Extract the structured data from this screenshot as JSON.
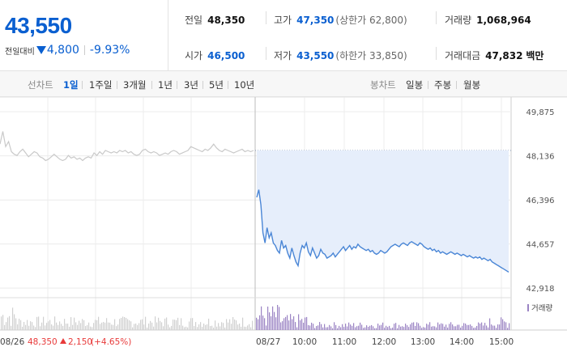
{
  "quote": {
    "price": "43,550",
    "change_label": "전일대비",
    "change_amount": "4,800",
    "change_rate": "-9.93%",
    "color_down": "#0a5fd0",
    "color_up": "#e83a3a"
  },
  "stats": {
    "prev_close": {
      "label": "전일",
      "value": "48,350"
    },
    "open": {
      "label": "시가",
      "value": "46,500"
    },
    "high": {
      "label": "고가",
      "value": "47,350",
      "sub": "(상한가 62,800)"
    },
    "low": {
      "label": "저가",
      "value": "43,550",
      "sub": "(하한가 33,850)"
    },
    "volume": {
      "label": "거래량",
      "value": "1,068,964"
    },
    "turnover": {
      "label": "거래대금",
      "value": "47,832",
      "unit": "백만"
    }
  },
  "tabs": {
    "line_label": "선차트",
    "line_periods": [
      "1일",
      "1주일",
      "3개월",
      "1년",
      "3년",
      "5년",
      "10년"
    ],
    "active_index": 0,
    "candle_label": "봉차트",
    "candle_periods": [
      "일봉",
      "주봉",
      "월봉"
    ]
  },
  "chart_data": {
    "type": "line",
    "y_ticks": [
      "49,875",
      "48,136",
      "46,396",
      "44,657",
      "42,918"
    ],
    "y_tick_values": [
      49875,
      48136,
      46396,
      44657,
      42918
    ],
    "ylim": [
      42700,
      50200
    ],
    "reference_line": 48350,
    "x_ticks": [
      "08/26",
      "08/27",
      "10:00",
      "11:00",
      "12:00",
      "13:00",
      "14:00",
      "15:00"
    ],
    "prev_day_note": {
      "price": "48,350",
      "change": "2,150",
      "rate": "(+4.65%)"
    },
    "volume_label": "거래량",
    "series": [
      {
        "name": "08/26",
        "style": "gray",
        "values": [
          48600,
          49100,
          48500,
          48700,
          48300,
          48200,
          48150,
          48300,
          48400,
          48250,
          48100,
          48200,
          48300,
          48250,
          48100,
          48050,
          47950,
          48000,
          48100,
          48200,
          48100,
          48000,
          47950,
          48000,
          48150,
          48050,
          48100,
          48000,
          48050,
          47950,
          48050,
          48100,
          48050,
          48250,
          48150,
          48300,
          48200,
          48350,
          48300,
          48250,
          48300,
          48250,
          48350,
          48300,
          48350,
          48250,
          48300,
          48200,
          48150,
          48200,
          48350,
          48400,
          48300,
          48250,
          48300,
          48250,
          48150,
          48200,
          48250,
          48200,
          48300,
          48350,
          48300,
          48200,
          48250,
          48300,
          48350,
          48500,
          48450,
          48400,
          48350,
          48300,
          48400,
          48350,
          48450,
          48600,
          48450,
          48350,
          48300,
          48400,
          48350,
          48300,
          48250,
          48300,
          48350,
          48400,
          48300,
          48350,
          48300,
          48350
        ]
      },
      {
        "name": "08/27",
        "style": "blue",
        "values": [
          46500,
          46800,
          46200,
          45100,
          44700,
          45300,
          44900,
          45100,
          44700,
          44600,
          44400,
          44300,
          44800,
          44500,
          44600,
          44300,
          44100,
          44500,
          44200,
          43950,
          43800,
          44300,
          44600,
          44500,
          44700,
          44350,
          44200,
          44500,
          44300,
          44100,
          44200,
          44450,
          44300,
          44250,
          44100,
          44150,
          44200,
          44300,
          44150,
          44250,
          44350,
          44450,
          44550,
          44400,
          44500,
          44600,
          44450,
          44550,
          44500,
          44650,
          44550,
          44500,
          44450,
          44400,
          44450,
          44350,
          44400,
          44300,
          44250,
          44300,
          44400,
          44350,
          44300,
          44350,
          44450,
          44550,
          44600,
          44650,
          44600,
          44550,
          44650,
          44700,
          44650,
          44600,
          44700,
          44750,
          44700,
          44650,
          44600,
          44700,
          44650,
          44550,
          44500,
          44450,
          44500,
          44400,
          44450,
          44350,
          44400,
          44300,
          44350,
          44300,
          44250,
          44300,
          44350,
          44300,
          44250,
          44300,
          44250,
          44200,
          44250,
          44200,
          44150,
          44200,
          44150,
          44100,
          44150,
          44100,
          44150,
          44050,
          44100,
          44050,
          44000,
          44050,
          43950,
          43900,
          43850,
          43800,
          43750,
          43700,
          43650,
          43600,
          43550
        ]
      }
    ]
  }
}
